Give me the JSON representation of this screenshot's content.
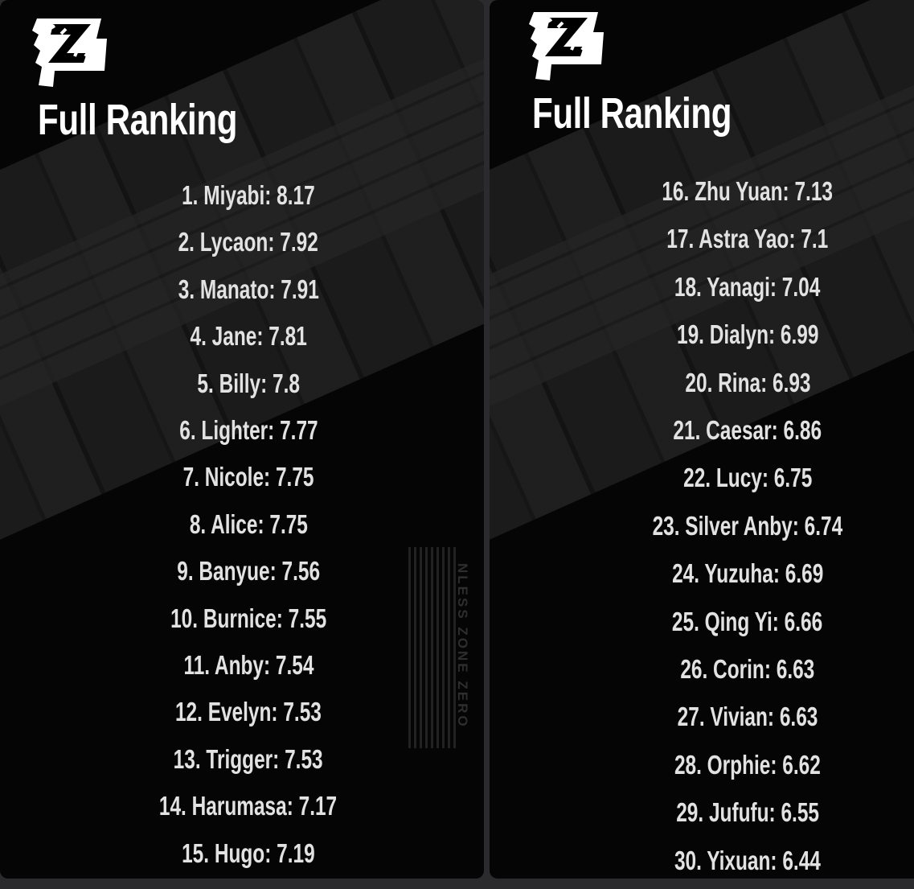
{
  "panels": [
    {
      "title": "Full Ranking",
      "logo": "zenless-zone-zero-logo",
      "watermark": "NLESS ZONE ZERO",
      "items": [
        {
          "rank": "1",
          "name": "Miyabi",
          "score": "8.17",
          "label": "1. Miyabi: 8.17"
        },
        {
          "rank": "2",
          "name": "Lycaon",
          "score": "7.92",
          "label": "2. Lycaon: 7.92"
        },
        {
          "rank": "3",
          "name": "Manato",
          "score": "7.91",
          "label": "3. Manato: 7.91"
        },
        {
          "rank": "4",
          "name": "Jane",
          "score": "7.81",
          "label": "4. Jane: 7.81"
        },
        {
          "rank": "5",
          "name": "Billy",
          "score": "7.8",
          "label": "5. Billy: 7.8"
        },
        {
          "rank": "6",
          "name": "Lighter",
          "score": "7.77",
          "label": "6. Lighter: 7.77"
        },
        {
          "rank": "7",
          "name": "Nicole",
          "score": "7.75",
          "label": "7. Nicole: 7.75"
        },
        {
          "rank": "8",
          "name": "Alice",
          "score": "7.75",
          "label": "8. Alice: 7.75"
        },
        {
          "rank": "9",
          "name": "Banyue",
          "score": "7.56",
          "label": "9. Banyue: 7.56"
        },
        {
          "rank": "10",
          "name": "Burnice",
          "score": "7.55",
          "label": "10. Burnice: 7.55"
        },
        {
          "rank": "11",
          "name": "Anby",
          "score": "7.54",
          "label": "11. Anby: 7.54"
        },
        {
          "rank": "12",
          "name": "Evelyn",
          "score": "7.53",
          "label": "12. Evelyn: 7.53"
        },
        {
          "rank": "13",
          "name": "Trigger",
          "score": "7.53",
          "label": "13. Trigger: 7.53"
        },
        {
          "rank": "14",
          "name": "Harumasa",
          "score": "7.17",
          "label": "14. Harumasa: 7.17"
        },
        {
          "rank": "15",
          "name": "Hugo",
          "score": "7.19",
          "label": "15. Hugo: 7.19"
        }
      ]
    },
    {
      "title": "Full Ranking",
      "logo": "zenless-zone-zero-logo",
      "items": [
        {
          "rank": "16",
          "name": "Zhu Yuan",
          "score": "7.13",
          "label": "16. Zhu Yuan: 7.13"
        },
        {
          "rank": "17",
          "name": "Astra Yao",
          "score": "7.1",
          "label": "17. Astra Yao: 7.1"
        },
        {
          "rank": "18",
          "name": "Yanagi",
          "score": "7.04",
          "label": "18. Yanagi: 7.04"
        },
        {
          "rank": "19",
          "name": "Dialyn",
          "score": "6.99",
          "label": "19. Dialyn: 6.99"
        },
        {
          "rank": "20",
          "name": "Rina",
          "score": "6.93",
          "label": "20. Rina: 6.93"
        },
        {
          "rank": "21",
          "name": "Caesar",
          "score": "6.86",
          "label": "21. Caesar: 6.86"
        },
        {
          "rank": "22",
          "name": "Lucy",
          "score": "6.75",
          "label": "22. Lucy: 6.75"
        },
        {
          "rank": "23",
          "name": "Silver Anby",
          "score": "6.74",
          "label": "23. Silver Anby: 6.74"
        },
        {
          "rank": "24",
          "name": "Yuzuha",
          "score": "6.69",
          "label": "24. Yuzuha: 6.69"
        },
        {
          "rank": "25",
          "name": "Qing Yi",
          "score": "6.66",
          "label": "25. Qing Yi: 6.66"
        },
        {
          "rank": "26",
          "name": "Corin",
          "score": "6.63",
          "label": "26. Corin: 6.63"
        },
        {
          "rank": "27",
          "name": "Vivian",
          "score": "6.63",
          "label": "27. Vivian: 6.63"
        },
        {
          "rank": "28",
          "name": "Orphie",
          "score": "6.62",
          "label": "28. Orphie: 6.62"
        },
        {
          "rank": "29",
          "name": "Jufufu",
          "score": "6.55",
          "label": "29. Jufufu: 6.55"
        },
        {
          "rank": "30",
          "name": "Yixuan",
          "score": "6.44",
          "label": "30. Yixuan: 6.44"
        }
      ]
    }
  ]
}
